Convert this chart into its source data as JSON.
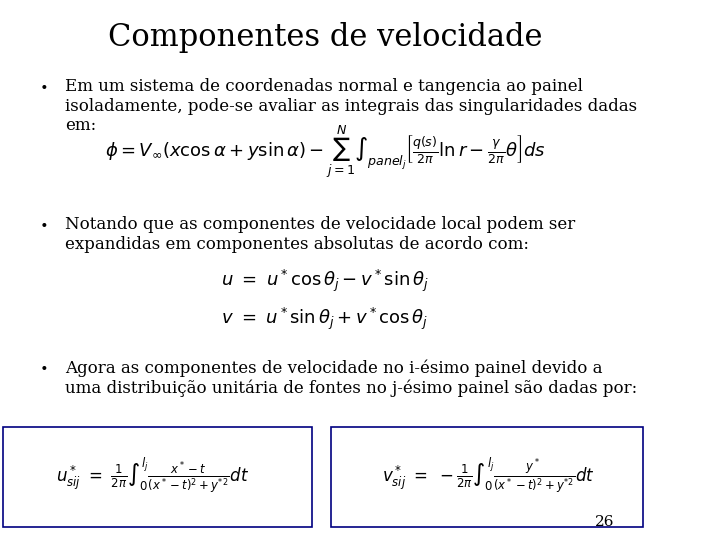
{
  "title": "Componentes de velocidade",
  "background_color": "#ffffff",
  "title_fontsize": 22,
  "title_font": "DejaVu Serif",
  "body_fontsize": 13,
  "bullet1_text": "Em um sistema de coordenadas normal e tangencia ao painel\nisoladamente, pode-se avaliar as integrais das singularidades dadas\nem:",
  "eq1": "\\phi = V_{\\infty}(x\\cos\\alpha + y\\sin\\alpha) - \\sum_{j=1}^{N}\\int_{panel_j}\\left[\\frac{q(s)}{2\\pi}\\ln r - \\frac{\\gamma}{2\\pi}\\theta\\right]ds",
  "bullet2_text": "Notando que as componentes de velocidade local podem ser\nexpandidas em componentes absolutas de acordo com:",
  "eq2a": "u \\ = \\ u^*\\cos\\theta_j - v^*\\sin\\theta_j",
  "eq2b": "v \\ = \\ u^*\\sin\\theta_j + v^*\\cos\\theta_j",
  "bullet3_text": "Agora as componentes de velocidade no i-ésimo painel devido a\numa distribuição unitária de fontes no j-ésimo painel são dadas por:",
  "eq3a": "u^*_{sij} \\ = \\ \\frac{1}{2\\pi}\\int_0^{l_j}\\frac{x^*-t}{(x^*-t)^2+y^{*2}}dt",
  "eq3b": "v^*_{sij} \\ = \\ -\\frac{1}{2\\pi}\\int_0^{l_j}\\frac{y^*}{(x^*-t)^2+y^{*2}}dt",
  "page_number": "26",
  "box_color": "#000080"
}
